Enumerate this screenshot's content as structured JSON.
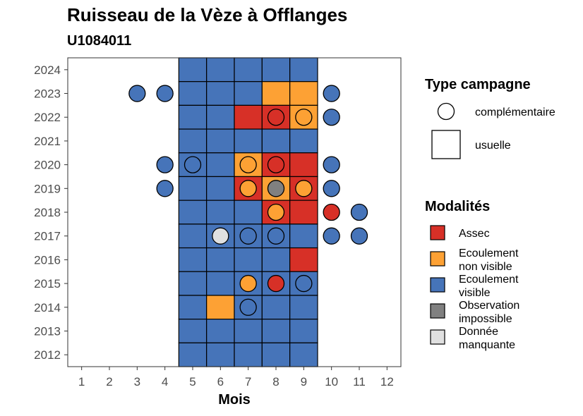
{
  "chart_data": {
    "type": "heatmap",
    "title": "Ruisseau de la Vèze à Offlanges",
    "subtitle": "U1084011",
    "xlabel": "Mois",
    "ylabel": "",
    "x_ticks": [
      "1",
      "2",
      "3",
      "4",
      "5",
      "6",
      "7",
      "8",
      "9",
      "10",
      "11",
      "12"
    ],
    "y_ticks": [
      "2012",
      "2013",
      "2014",
      "2015",
      "2016",
      "2017",
      "2018",
      "2019",
      "2020",
      "2021",
      "2022",
      "2023",
      "2024"
    ],
    "xlim": [
      0.5,
      12.5
    ],
    "ylim": [
      2011.5,
      2024.5
    ],
    "grid": false,
    "categories": {
      "assec": {
        "label": "Assec",
        "color": "#D73027"
      },
      "nonvisible": {
        "label": "Ecoulement non visible",
        "color": "#FDA134"
      },
      "visible": {
        "label": "Ecoulement visible",
        "color": "#4674B9"
      },
      "impossible": {
        "label": "Observation impossible",
        "color": "#808080"
      },
      "manquante": {
        "label": "Donnée manquante",
        "color": "#E0E0E0"
      }
    },
    "legend": {
      "position": "right",
      "type_title": "Type campagne",
      "type_items": [
        {
          "label": "complémentaire",
          "shape": "circle"
        },
        {
          "label": "usuelle",
          "shape": "square"
        }
      ],
      "mod_title": "Modalités",
      "mod_items": [
        {
          "key": "assec",
          "line1": "Assec",
          "line2": ""
        },
        {
          "key": "nonvisible",
          "line1": "Ecoulement",
          "line2": "non visible"
        },
        {
          "key": "visible",
          "line1": "Ecoulement",
          "line2": "visible"
        },
        {
          "key": "impossible",
          "line1": "Observation",
          "line2": "impossible"
        },
        {
          "key": "manquante",
          "line1": "Donnée",
          "line2": "manquante"
        }
      ]
    },
    "usuelle": [
      {
        "year": 2024,
        "values": {
          "5": "visible",
          "6": "visible",
          "7": "visible",
          "8": "visible",
          "9": "visible"
        }
      },
      {
        "year": 2023,
        "values": {
          "5": "visible",
          "6": "visible",
          "7": "visible",
          "8": "nonvisible",
          "9": "nonvisible"
        }
      },
      {
        "year": 2022,
        "values": {
          "5": "visible",
          "6": "visible",
          "7": "assec",
          "8": "assec",
          "9": "nonvisible"
        }
      },
      {
        "year": 2021,
        "values": {
          "5": "visible",
          "6": "visible",
          "7": "visible",
          "8": "visible",
          "9": "visible"
        }
      },
      {
        "year": 2020,
        "values": {
          "5": "visible",
          "6": "visible",
          "7": "nonvisible",
          "8": "assec",
          "9": "assec"
        }
      },
      {
        "year": 2019,
        "values": {
          "5": "visible",
          "6": "visible",
          "7": "assec",
          "8": "nonvisible",
          "9": "assec"
        }
      },
      {
        "year": 2018,
        "values": {
          "5": "visible",
          "6": "visible",
          "7": "visible",
          "8": "assec",
          "9": "assec"
        }
      },
      {
        "year": 2017,
        "values": {
          "5": "visible",
          "6": "visible",
          "7": "visible",
          "8": "visible",
          "9": "visible"
        }
      },
      {
        "year": 2016,
        "values": {
          "5": "visible",
          "6": "visible",
          "7": "visible",
          "8": "visible",
          "9": "assec"
        }
      },
      {
        "year": 2015,
        "values": {
          "5": "visible",
          "6": "visible",
          "7": "visible",
          "8": "visible",
          "9": "visible"
        }
      },
      {
        "year": 2014,
        "values": {
          "5": "visible",
          "6": "nonvisible",
          "7": "visible",
          "8": "visible",
          "9": "visible"
        }
      },
      {
        "year": 2013,
        "values": {
          "5": "visible",
          "6": "visible",
          "7": "visible",
          "8": "visible",
          "9": "visible"
        }
      },
      {
        "year": 2012,
        "values": {
          "5": "visible",
          "6": "visible",
          "7": "visible",
          "8": "visible",
          "9": "visible"
        }
      }
    ],
    "complementaire": [
      {
        "year": 2023,
        "month": 3,
        "value": "visible"
      },
      {
        "year": 2023,
        "month": 4,
        "value": "visible"
      },
      {
        "year": 2023,
        "month": 10,
        "value": "visible"
      },
      {
        "year": 2022,
        "month": 8,
        "value": "assec"
      },
      {
        "year": 2022,
        "month": 9,
        "value": "nonvisible"
      },
      {
        "year": 2022,
        "month": 10,
        "value": "visible"
      },
      {
        "year": 2020,
        "month": 4,
        "value": "visible"
      },
      {
        "year": 2020,
        "month": 5,
        "value": "visible"
      },
      {
        "year": 2020,
        "month": 7,
        "value": "nonvisible"
      },
      {
        "year": 2020,
        "month": 8,
        "value": "assec"
      },
      {
        "year": 2020,
        "month": 10,
        "value": "visible"
      },
      {
        "year": 2019,
        "month": 4,
        "value": "visible"
      },
      {
        "year": 2019,
        "month": 7,
        "value": "nonvisible"
      },
      {
        "year": 2019,
        "month": 8,
        "value": "impossible"
      },
      {
        "year": 2019,
        "month": 9,
        "value": "nonvisible"
      },
      {
        "year": 2019,
        "month": 10,
        "value": "visible"
      },
      {
        "year": 2018,
        "month": 8,
        "value": "nonvisible"
      },
      {
        "year": 2018,
        "month": 10,
        "value": "assec"
      },
      {
        "year": 2018,
        "month": 11,
        "value": "visible"
      },
      {
        "year": 2017,
        "month": 6,
        "value": "manquante"
      },
      {
        "year": 2017,
        "month": 7,
        "value": "visible"
      },
      {
        "year": 2017,
        "month": 8,
        "value": "visible"
      },
      {
        "year": 2017,
        "month": 10,
        "value": "visible"
      },
      {
        "year": 2017,
        "month": 11,
        "value": "visible"
      },
      {
        "year": 2015,
        "month": 7,
        "value": "nonvisible"
      },
      {
        "year": 2015,
        "month": 8,
        "value": "assec"
      },
      {
        "year": 2015,
        "month": 9,
        "value": "visible"
      },
      {
        "year": 2014,
        "month": 7,
        "value": "visible"
      }
    ]
  }
}
